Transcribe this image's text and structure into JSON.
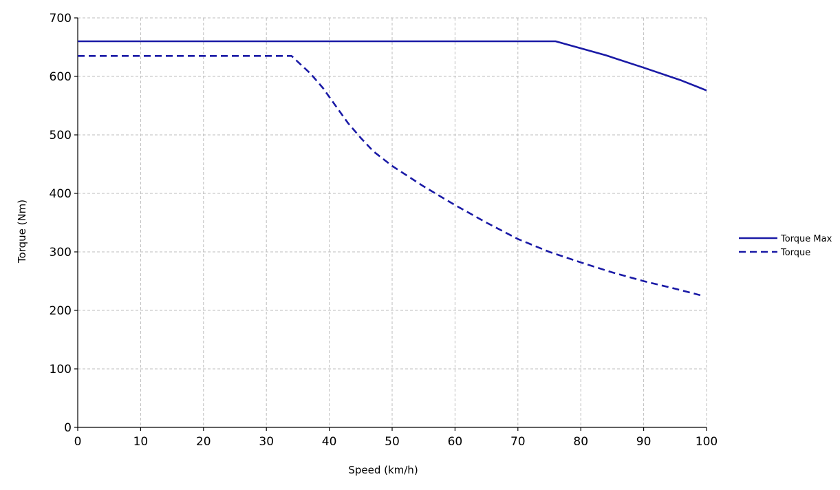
{
  "chart_data": {
    "type": "line",
    "xlabel": "Speed (km/h)",
    "ylabel": "Torque (Nm)",
    "xlim": [
      0,
      100
    ],
    "ylim": [
      0,
      700
    ],
    "xticks": [
      0,
      10,
      20,
      30,
      40,
      50,
      60,
      70,
      80,
      90,
      100
    ],
    "yticks": [
      0,
      100,
      200,
      300,
      400,
      500,
      600,
      700
    ],
    "grid": true,
    "legend_position": "right",
    "series": [
      {
        "name": "Torque Max",
        "style": "solid",
        "color": "#1a1aa6",
        "x": [
          0,
          76,
          84,
          90,
          96,
          100
        ],
        "y": [
          660,
          660,
          636,
          615,
          593,
          576
        ]
      },
      {
        "name": "Torque",
        "style": "dashed",
        "color": "#1a1aa6",
        "x": [
          0,
          34,
          35,
          37,
          39,
          41,
          43,
          45,
          47,
          50,
          55,
          60,
          65,
          70,
          75,
          80,
          85,
          90,
          95,
          99
        ],
        "y": [
          635,
          635,
          625,
          605,
          580,
          550,
          520,
          495,
          472,
          447,
          412,
          380,
          350,
          322,
          300,
          282,
          265,
          250,
          237,
          226
        ]
      }
    ]
  }
}
